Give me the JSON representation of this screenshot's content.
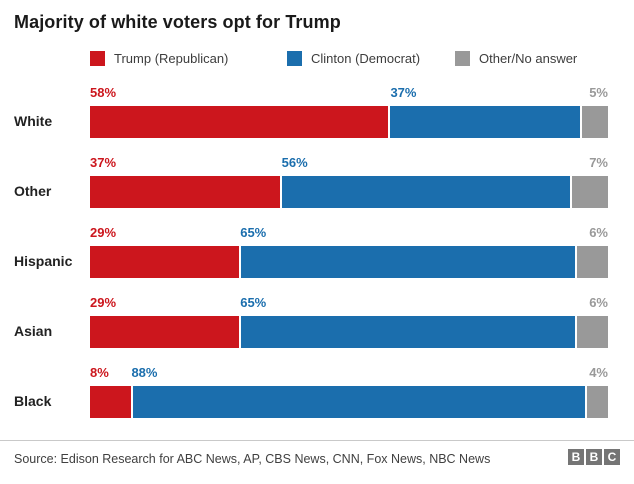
{
  "header": {
    "title": "Majority of white voters opt for Trump"
  },
  "colors": {
    "trump_red": "#cc161d",
    "clinton_blue": "#1b6ead",
    "other_gray": "#999999",
    "logo_gray": "#757575"
  },
  "footer": {
    "source": "Source: Edison Research for ABC News, AP, CBS News, CNN, Fox News, NBC News",
    "logo_letters": [
      "B",
      "B",
      "C"
    ]
  },
  "chart_data": {
    "type": "bar",
    "stacked": true,
    "orientation": "horizontal",
    "title": "Majority of white voters opt for Trump",
    "categories": [
      "White",
      "Other",
      "Hispanic",
      "Asian",
      "Black"
    ],
    "series": [
      {
        "name": "Trump (Republican)",
        "color": "#cc161d",
        "values": [
          58,
          37,
          29,
          29,
          8
        ]
      },
      {
        "name": "Clinton (Democrat)",
        "color": "#1b6ead",
        "values": [
          37,
          56,
          65,
          65,
          88
        ]
      },
      {
        "name": "Other/No answer",
        "color": "#999999",
        "values": [
          5,
          7,
          6,
          6,
          4
        ]
      }
    ],
    "value_format": "percent",
    "value_suffix": "%",
    "xlim": [
      0,
      100
    ],
    "grid": false,
    "legend_position": "top",
    "data_labels": true
  }
}
